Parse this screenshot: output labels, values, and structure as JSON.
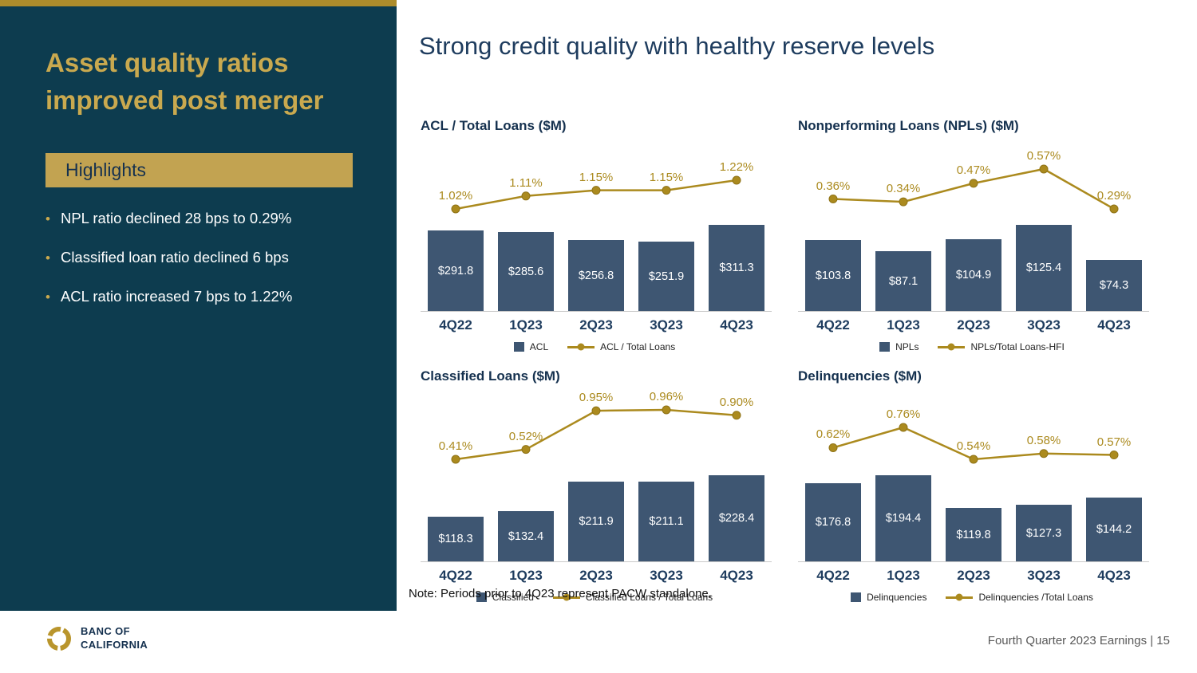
{
  "colors": {
    "panel_bg": "#0d3c4f",
    "gold_strip": "#ad8c2b",
    "gold_title": "#c9a94f",
    "highlight_bar_bg": "#c2a351",
    "bar_fill": "#3e5672",
    "line_gold": "#ab8a1e",
    "heading_navy": "#1e3c5e",
    "footer_text_gray": "#595959"
  },
  "left_panel": {
    "title": "Asset quality ratios improved post merger",
    "highlights_header": "Highlights",
    "bullets": [
      "NPL ratio declined 28 bps to 0.29%",
      "Classified loan ratio declined 6 bps",
      "ACL ratio increased 7 bps to 1.22%"
    ]
  },
  "heading": "Strong credit quality with healthy reserve levels",
  "note": "Note: Periods prior to 4Q23 represent PACW standalone.",
  "footer": {
    "logo_line1": "BANC OF",
    "logo_line2": "CALIFORNIA",
    "right_text": "Fourth Quarter 2023 Earnings |  15"
  },
  "chart_data": [
    {
      "type": "bar+line",
      "title": "ACL / Total Loans ($M)",
      "categories": [
        "4Q22",
        "1Q23",
        "2Q23",
        "3Q23",
        "4Q23"
      ],
      "bar_series": {
        "name": "ACL",
        "values": [
          291.8,
          285.6,
          256.8,
          251.9,
          311.3
        ],
        "labels": [
          "$291.8",
          "$285.6",
          "$256.8",
          "$251.9",
          "$311.3"
        ]
      },
      "line_series": {
        "name": "ACL / Total Loans",
        "values_pct": [
          1.02,
          1.11,
          1.15,
          1.15,
          1.22
        ],
        "labels": [
          "1.02%",
          "1.11%",
          "1.15%",
          "1.15%",
          "1.22%"
        ]
      },
      "legend": [
        "ACL",
        "ACL / Total Loans"
      ]
    },
    {
      "type": "bar+line",
      "title": "Nonperforming Loans (NPLs) ($M)",
      "categories": [
        "4Q22",
        "1Q23",
        "2Q23",
        "3Q23",
        "4Q23"
      ],
      "bar_series": {
        "name": "NPLs",
        "values": [
          103.8,
          87.1,
          104.9,
          125.4,
          74.3
        ],
        "labels": [
          "$103.8",
          "$87.1",
          "$104.9",
          "$125.4",
          "$74.3"
        ]
      },
      "line_series": {
        "name": "NPLs/Total Loans-HFI",
        "values_pct": [
          0.36,
          0.34,
          0.47,
          0.57,
          0.29
        ],
        "labels": [
          "0.36%",
          "0.34%",
          "0.47%",
          "0.57%",
          "0.29%"
        ]
      },
      "legend": [
        "NPLs",
        "NPLs/Total Loans-HFI"
      ]
    },
    {
      "type": "bar+line",
      "title": "Classified Loans ($M)",
      "categories": [
        "4Q22",
        "1Q23",
        "2Q23",
        "3Q23",
        "4Q23"
      ],
      "bar_series": {
        "name": "Classified",
        "values": [
          118.3,
          132.4,
          211.9,
          211.1,
          228.4
        ],
        "labels": [
          "$118.3",
          "$132.4",
          "$211.9",
          "$211.1",
          "$228.4"
        ]
      },
      "line_series": {
        "name": "Classified Loans / Total Loans",
        "values_pct": [
          0.41,
          0.52,
          0.95,
          0.96,
          0.9
        ],
        "labels": [
          "0.41%",
          "0.52%",
          "0.95%",
          "0.96%",
          "0.90%"
        ]
      },
      "legend": [
        "Classified",
        "Classified Loans / Total Loans"
      ]
    },
    {
      "type": "bar+line",
      "title": "Delinquencies ($M)",
      "categories": [
        "4Q22",
        "1Q23",
        "2Q23",
        "3Q23",
        "4Q23"
      ],
      "bar_series": {
        "name": "Delinquencies",
        "values": [
          176.8,
          194.4,
          119.8,
          127.3,
          144.2
        ],
        "labels": [
          "$176.8",
          "$194.4",
          "$119.8",
          "$127.3",
          "$144.2"
        ]
      },
      "line_series": {
        "name": "Delinquencies /Total Loans",
        "values_pct": [
          0.62,
          0.76,
          0.54,
          0.58,
          0.57
        ],
        "labels": [
          "0.62%",
          "0.76%",
          "0.54%",
          "0.58%",
          "0.57%"
        ]
      },
      "legend": [
        "Delinquencies",
        "Delinquencies /Total Loans"
      ]
    }
  ]
}
